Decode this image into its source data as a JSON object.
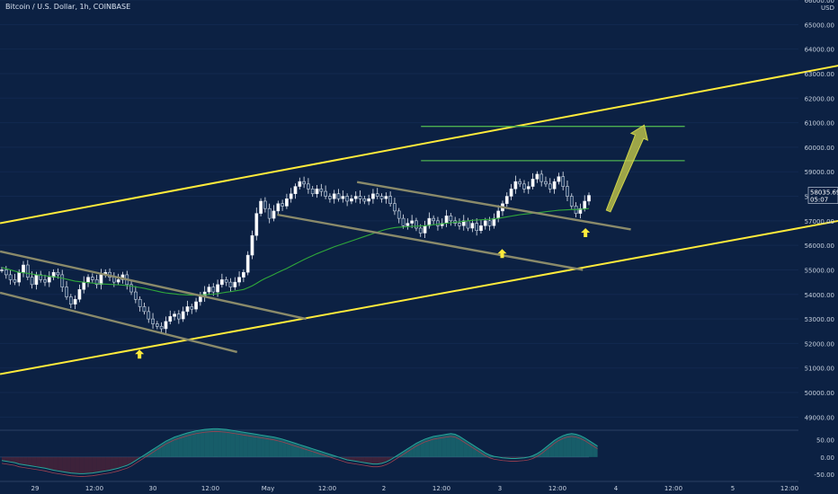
{
  "header": {
    "title": "Bitcoin / U.S. Dollar, 1h, COINBASE",
    "currency": "USD"
  },
  "price_badge": {
    "price": "58035.69",
    "countdown": "05:07"
  },
  "colors": {
    "background": "#0c2143",
    "channel": "#ffeb3b",
    "flag": "#8a8a6a",
    "target": "#4caf50",
    "ma": "#2fa83a",
    "arrow": "#cdd24a",
    "up_candle": "#ffffff",
    "down_candle": "#1e3a5f",
    "osc_pos": "#26a69a",
    "osc_neg": "#7a2430",
    "text": "#c8d2e0"
  },
  "chart_data": {
    "type": "candlestick",
    "title": "Bitcoin / U.S. Dollar, 1h, COINBASE",
    "y_unit": "USD",
    "ylim": [
      48500,
      66000
    ],
    "y_ticks": [
      "49000.00",
      "50000.00",
      "51000.00",
      "52000.00",
      "53000.00",
      "54000.00",
      "55000.00",
      "56000.00",
      "57000.00",
      "58000.00",
      "59000.00",
      "60000.00",
      "61000.00",
      "62000.00",
      "63000.00",
      "64000.00",
      "65000.00",
      "66000.00"
    ],
    "x_ticks": [
      "29",
      "12:00",
      "30",
      "12:00",
      "May",
      "12:00",
      "2",
      "12:00",
      "3",
      "12:00",
      "4",
      "12:00",
      "5",
      "12:00"
    ],
    "last_price": 58035.69,
    "closes": [
      55000,
      54800,
      54600,
      54500,
      54900,
      55200,
      54700,
      54400,
      54800,
      54600,
      54500,
      54700,
      54900,
      54800,
      54300,
      53900,
      53600,
      53800,
      54200,
      54500,
      54700,
      54600,
      54400,
      54800,
      54900,
      54700,
      54500,
      54600,
      54800,
      54400,
      54100,
      53800,
      53500,
      53300,
      53000,
      52800,
      52700,
      52600,
      52900,
      53100,
      53200,
      53000,
      53300,
      53500,
      53400,
      53700,
      53900,
      54100,
      54300,
      54100,
      54400,
      54600,
      54500,
      54300,
      54500,
      54700,
      54900,
      55600,
      56400,
      57300,
      57800,
      57500,
      57100,
      57400,
      57700,
      57600,
      57900,
      58100,
      58400,
      58600,
      58500,
      58300,
      58100,
      58300,
      58200,
      58000,
      57900,
      58100,
      57900,
      58000,
      57800,
      57900,
      58000,
      57900,
      57800,
      57900,
      58100,
      58000,
      57900,
      58000,
      57700,
      57400,
      57100,
      56800,
      56900,
      57000,
      56700,
      56500,
      56800,
      57100,
      57000,
      56800,
      56900,
      57200,
      57000,
      56900,
      56800,
      57000,
      56700,
      56900,
      56600,
      56800,
      57000,
      56800,
      57100,
      57400,
      57700,
      58000,
      58300,
      58600,
      58500,
      58300,
      58400,
      58700,
      58900,
      58600,
      58500,
      58300,
      58600,
      58800,
      58400,
      58000,
      57600,
      57300,
      57500,
      57800,
      58035.69
    ],
    "ma": [
      55100,
      55050,
      55000,
      54950,
      54900,
      54880,
      54860,
      54830,
      54800,
      54780,
      54760,
      54740,
      54720,
      54700,
      54660,
      54620,
      54580,
      54540,
      54520,
      54500,
      54480,
      54460,
      54440,
      54430,
      54420,
      54410,
      54400,
      54390,
      54380,
      54360,
      54340,
      54310,
      54280,
      54250,
      54210,
      54170,
      54130,
      54090,
      54060,
      54040,
      54020,
      54000,
      53990,
      53980,
      53970,
      53970,
      53980,
      53990,
      54000,
      54010,
      54030,
      54060,
      54090,
      54110,
      54140,
      54170,
      54200,
      54270,
      54350,
      54450,
      54560,
      54650,
      54730,
      54810,
      54900,
      54980,
      55060,
      55150,
      55240,
      55330,
      55420,
      55500,
      55580,
      55660,
      55730,
      55800,
      55870,
      55940,
      56000,
      56060,
      56120,
      56180,
      56240,
      56300,
      56360,
      56420,
      56480,
      56540,
      56600,
      56650,
      56690,
      56720,
      56740,
      56750,
      56760,
      56770,
      56780,
      56790,
      56800,
      56820,
      56840,
      56860,
      56880,
      56900,
      56920,
      56940,
      56960,
      56980,
      57000,
      57020,
      57030,
      57040,
      57050,
      57060,
      57080,
      57100,
      57130,
      57160,
      57190,
      57220,
      57250,
      57270,
      57290,
      57310,
      57330,
      57350,
      57370,
      57390,
      57410,
      57430,
      57440,
      57450,
      57460,
      57460,
      57470,
      57480,
      57500
    ],
    "oscillator": [
      -10,
      -12,
      -14,
      -16,
      -20,
      -22,
      -24,
      -26,
      -28,
      -30,
      -32,
      -35,
      -38,
      -40,
      -42,
      -44,
      -46,
      -47,
      -48,
      -48,
      -47,
      -46,
      -44,
      -42,
      -40,
      -38,
      -35,
      -32,
      -28,
      -24,
      -18,
      -10,
      -2,
      6,
      14,
      22,
      30,
      38,
      46,
      52,
      58,
      62,
      66,
      70,
      73,
      76,
      78,
      80,
      81,
      82,
      82,
      81,
      80,
      78,
      76,
      74,
      72,
      70,
      68,
      66,
      64,
      62,
      60,
      58,
      55,
      52,
      48,
      44,
      40,
      36,
      32,
      28,
      24,
      20,
      16,
      12,
      8,
      4,
      0,
      -4,
      -8,
      -10,
      -12,
      -14,
      -16,
      -18,
      -20,
      -20,
      -18,
      -14,
      -8,
      0,
      8,
      16,
      24,
      32,
      40,
      46,
      52,
      56,
      60,
      62,
      64,
      66,
      68,
      66,
      60,
      52,
      44,
      36,
      28,
      20,
      12,
      6,
      2,
      0,
      -2,
      -3,
      -4,
      -4,
      -3,
      -2,
      0,
      4,
      10,
      18,
      28,
      38,
      48,
      56,
      62,
      66,
      68,
      66,
      62,
      56,
      48,
      40,
      32
    ]
  }
}
